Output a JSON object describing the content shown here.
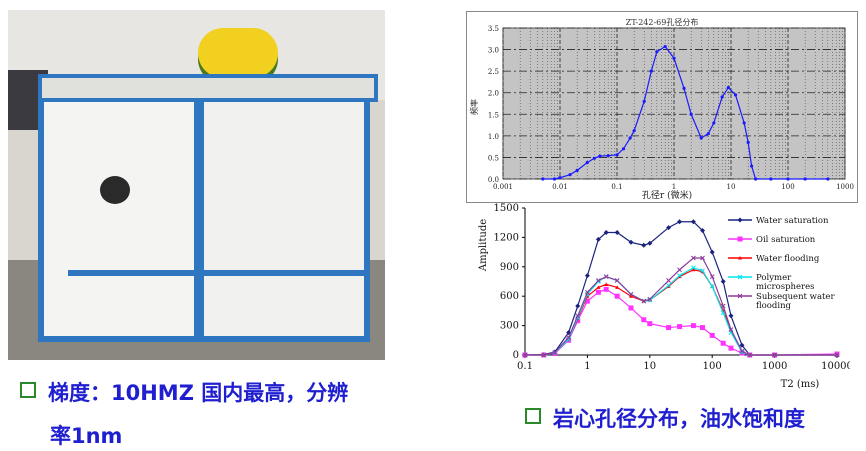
{
  "captions": {
    "left_line1": "梯度：10HMZ 国内最高，分辨",
    "left_line2": "率1nm",
    "right": "岩心孔径分布，油水饱和度"
  },
  "colors": {
    "caption_text": "#1f1fd0",
    "bullet": "#2a8a2a"
  },
  "chart_data": [
    {
      "type": "line",
      "title": "ZT-242-69孔径分布",
      "xlabel": "孔径r (微米)",
      "ylabel": "频率",
      "xscale": "log",
      "xlim": [
        0.001,
        1000
      ],
      "ylim": [
        0,
        3.5
      ],
      "xticks": [
        "0.001",
        "0.01",
        "0.1",
        "1",
        "10",
        "100",
        "1000"
      ],
      "yticks": [
        "0.0",
        "0.5",
        "1.0",
        "1.5",
        "2.0",
        "2.5",
        "3.0",
        "3.5"
      ],
      "grid": true,
      "series": [
        {
          "color": "#1a1aff",
          "x": [
            0.005,
            0.008,
            0.01,
            0.015,
            0.02,
            0.03,
            0.04,
            0.05,
            0.07,
            0.1,
            0.13,
            0.17,
            0.2,
            0.3,
            0.4,
            0.5,
            0.7,
            1,
            1.5,
            2,
            3,
            4,
            5,
            7,
            9,
            12,
            17,
            20,
            23,
            27,
            50,
            100,
            200,
            500
          ],
          "y": [
            0,
            0,
            0.03,
            0.1,
            0.2,
            0.38,
            0.48,
            0.53,
            0.54,
            0.56,
            0.7,
            0.95,
            1.12,
            1.8,
            2.5,
            2.95,
            3.07,
            2.8,
            2.1,
            1.5,
            0.95,
            1.05,
            1.3,
            1.9,
            2.12,
            1.95,
            1.3,
            0.85,
            0.3,
            0,
            0,
            0,
            0,
            0
          ]
        }
      ]
    },
    {
      "type": "line",
      "xlabel": "T2 (ms)",
      "ylabel": "Amplitude",
      "xscale": "log",
      "xlim": [
        0.1,
        10000
      ],
      "ylim": [
        0,
        1500
      ],
      "xticks": [
        "0.1",
        "1",
        "10",
        "100",
        "1000",
        "10000"
      ],
      "yticks": [
        "0",
        "300",
        "600",
        "900",
        "1200",
        "1500"
      ],
      "legend": "right",
      "x": [
        0.1,
        0.2,
        0.3,
        0.5,
        0.7,
        1,
        1.5,
        2,
        3,
        5,
        8,
        10,
        20,
        30,
        50,
        70,
        100,
        150,
        200,
        300,
        400,
        1000,
        10000
      ],
      "series": [
        {
          "name": "Water saturation",
          "color": "#1a237e",
          "marker": "diamond",
          "values": [
            0,
            5,
            30,
            230,
            500,
            810,
            1180,
            1250,
            1250,
            1150,
            1120,
            1140,
            1300,
            1360,
            1360,
            1270,
            1050,
            750,
            400,
            100,
            0,
            0,
            0
          ]
        },
        {
          "name": "Oil saturation",
          "color": "#ff33ff",
          "marker": "square",
          "values": [
            0,
            0,
            15,
            150,
            350,
            550,
            640,
            670,
            600,
            480,
            360,
            320,
            280,
            290,
            300,
            280,
            200,
            120,
            70,
            20,
            0,
            0,
            10
          ]
        },
        {
          "name": "Water flooding",
          "color": "#ff0000",
          "marker": "triangle",
          "values": [
            0,
            0,
            20,
            160,
            370,
            600,
            690,
            720,
            690,
            600,
            550,
            560,
            700,
            800,
            870,
            850,
            700,
            450,
            250,
            30,
            0,
            0,
            0
          ]
        },
        {
          "name": "Polymer microspheres",
          "color": "#00e5ee",
          "marker": "x",
          "values": [
            0,
            0,
            20,
            160,
            380,
            620,
            750,
            800,
            760,
            620,
            550,
            560,
            710,
            810,
            890,
            860,
            700,
            430,
            230,
            30,
            0,
            0,
            0
          ]
        },
        {
          "name": "Subsequent water flooding",
          "color": "#8e3a9a",
          "marker": "star",
          "values": [
            0,
            0,
            25,
            180,
            400,
            640,
            760,
            800,
            760,
            620,
            550,
            570,
            760,
            870,
            990,
            990,
            800,
            500,
            260,
            40,
            0,
            0,
            0
          ]
        }
      ]
    }
  ]
}
